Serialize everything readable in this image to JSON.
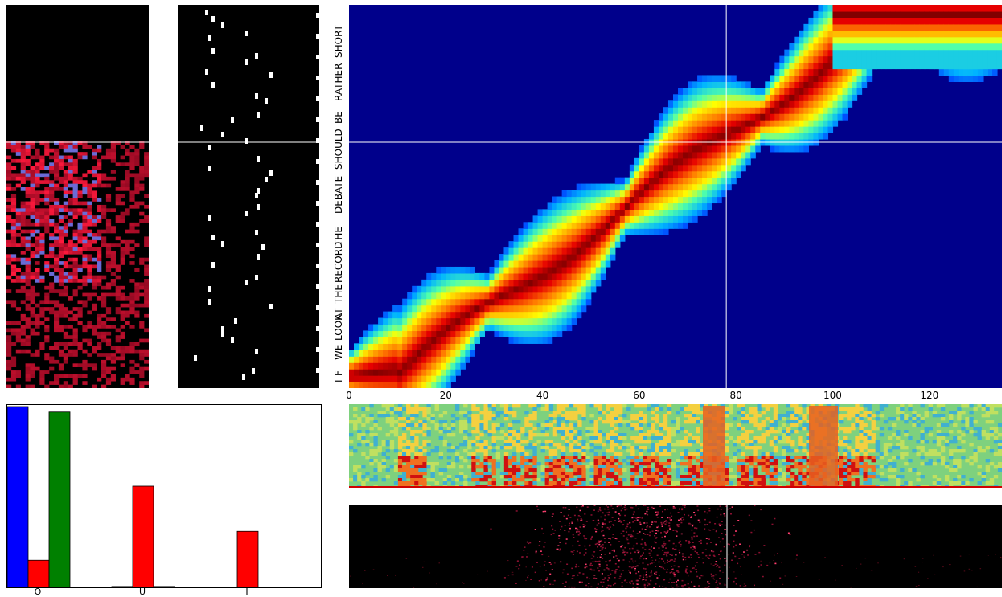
{
  "transcript_words": [
    "I",
    "F",
    "WE",
    "LOOK",
    "AT",
    "THE",
    "RECORD",
    "THE",
    "DEBATE",
    "SHOULD",
    "BE",
    "RATHER",
    "SHORT"
  ],
  "alignment_x_ticks": [
    "0",
    "20",
    "40",
    "60",
    "80",
    "100",
    "120"
  ],
  "alignment_x_range": [
    0,
    135
  ],
  "cursor_frame": 78,
  "bar_chart": {
    "categories": [
      "O",
      "U",
      "I"
    ],
    "series_colors": [
      "#0000ff",
      "#ff0000",
      "#008000"
    ],
    "values": [
      [
        1.0,
        0.15,
        0.97
      ],
      [
        0.005,
        0.56,
        0.005
      ],
      [
        0.0,
        0.31,
        0.0
      ]
    ],
    "ylim": [
      0,
      1.0
    ]
  },
  "colors": {
    "alignment_background": "#00008b",
    "cursor_line": "#ffffff",
    "heatmap_red": "#e8102a",
    "heatmap_blue": "#6b6bd6"
  }
}
